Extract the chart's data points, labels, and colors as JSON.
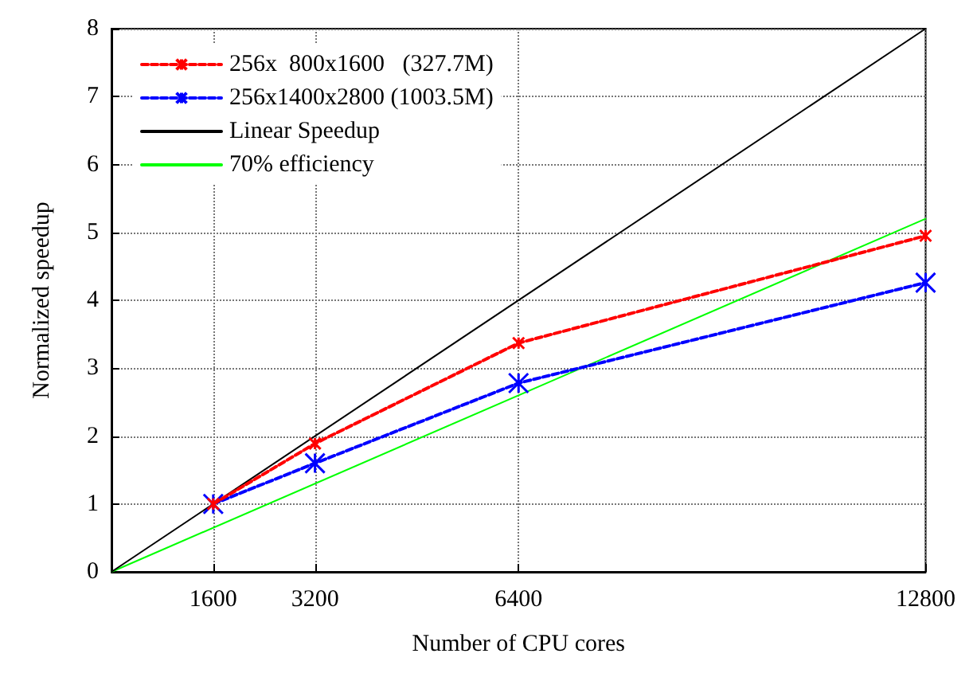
{
  "chart_data": {
    "type": "line",
    "xlabel": "Number of CPU cores",
    "ylabel": "Normalized speedup",
    "xlim": [
      0,
      12800
    ],
    "xticks": [
      1600,
      3200,
      6400,
      12800
    ],
    "ylim": [
      0,
      8
    ],
    "yticks": [
      0,
      1,
      2,
      3,
      4,
      5,
      6,
      7,
      8
    ],
    "grid": true,
    "legend": "top left",
    "series": [
      {
        "name": "256x  800x1600   (327.7M)",
        "color": "#ff0000",
        "x": [
          1600,
          3200,
          6400,
          12800
        ],
        "values": [
          1,
          1.89,
          3.37,
          4.95
        ],
        "marker": "cross",
        "line_style": "dashed"
      },
      {
        "name": "256x1400x2800 (1003.5M)",
        "color": "#0000ff",
        "x": [
          1600,
          3200,
          6400,
          12800
        ],
        "values": [
          1,
          1.6,
          2.78,
          4.26
        ],
        "marker": "cross",
        "line_style": "dashed"
      },
      {
        "name": "Linear Speedup",
        "color": "#000000",
        "x": [
          0,
          12800
        ],
        "values": [
          0,
          8
        ],
        "marker": "none",
        "line_style": "solid"
      },
      {
        "name": "70% efficiency",
        "color": "#00ff00",
        "x": [
          0,
          12800
        ],
        "values": [
          0,
          5.2
        ],
        "marker": "none",
        "line_style": "solid"
      }
    ]
  }
}
